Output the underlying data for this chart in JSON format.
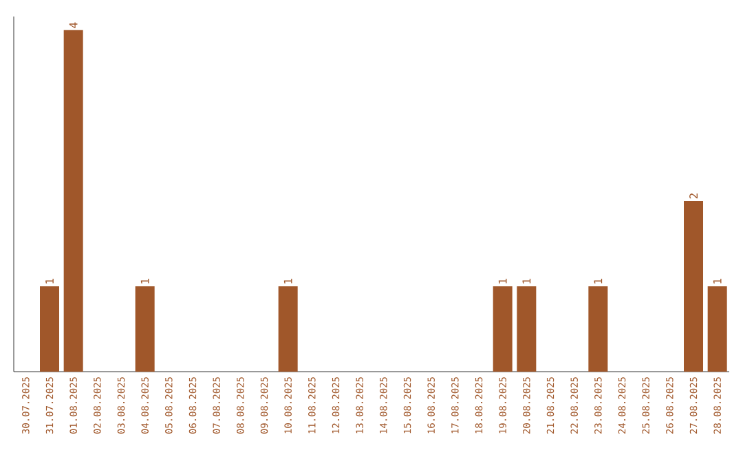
{
  "chart_data": {
    "type": "bar",
    "categories": [
      "30.07.2025",
      "31.07.2025",
      "01.08.2025",
      "02.08.2025",
      "03.08.2025",
      "04.08.2025",
      "05.08.2025",
      "06.08.2025",
      "07.08.2025",
      "08.08.2025",
      "09.08.2025",
      "10.08.2025",
      "11.08.2025",
      "12.08.2025",
      "13.08.2025",
      "14.08.2025",
      "15.08.2025",
      "16.08.2025",
      "17.08.2025",
      "18.08.2025",
      "19.08.2025",
      "20.08.2025",
      "21.08.2025",
      "22.08.2025",
      "23.08.2025",
      "24.08.2025",
      "25.08.2025",
      "26.08.2025",
      "27.08.2025",
      "28.08.2025"
    ],
    "values": [
      0,
      1,
      4,
      0,
      0,
      1,
      0,
      0,
      0,
      0,
      0,
      1,
      0,
      0,
      0,
      0,
      0,
      0,
      0,
      0,
      1,
      1,
      0,
      0,
      1,
      0,
      0,
      0,
      2,
      1
    ],
    "value_labels": [
      null,
      "1",
      "4",
      null,
      null,
      "1",
      null,
      null,
      null,
      null,
      null,
      "1",
      null,
      null,
      null,
      null,
      null,
      null,
      null,
      null,
      "1",
      "1",
      null,
      null,
      "1",
      null,
      null,
      null,
      "2",
      "1"
    ],
    "color": "#a0572a"
  }
}
